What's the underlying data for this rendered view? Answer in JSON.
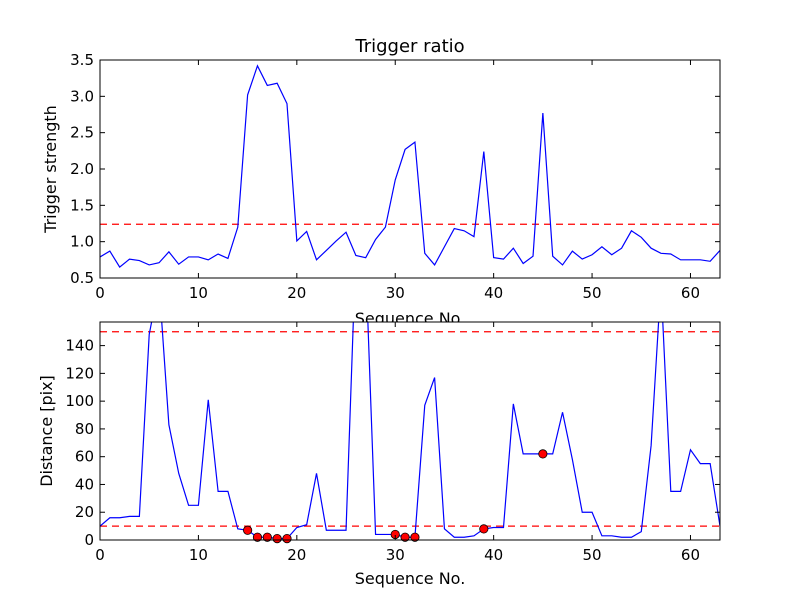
{
  "chart_data": [
    {
      "type": "line",
      "title": "Trigger ratio",
      "xlabel": "Sequence No.",
      "ylabel": "Trigger strength",
      "xlim": [
        0,
        63
      ],
      "ylim": [
        0.5,
        3.5
      ],
      "xticks": [
        0,
        10,
        20,
        30,
        40,
        50,
        60
      ],
      "xtick_labels": [
        "0",
        "10",
        "20",
        "30",
        "40",
        "50",
        "60"
      ],
      "yticks": [
        0.5,
        1.0,
        1.5,
        2.0,
        2.5,
        3.0,
        3.5
      ],
      "ytick_labels": [
        "0.5",
        "1.0",
        "1.5",
        "2.0",
        "2.5",
        "3.0",
        "3.5"
      ],
      "line_color": "#0000ff",
      "threshold_color": "#ff0000",
      "thresholds": [
        1.24
      ],
      "grid": false,
      "series": [
        {
          "x": [
            0,
            1,
            2,
            3,
            4,
            5,
            6,
            7,
            8,
            9,
            10,
            11,
            12,
            13,
            14,
            15,
            16,
            17,
            18,
            19,
            20,
            21,
            22,
            23,
            24,
            25,
            26,
            27,
            28,
            29,
            30,
            31,
            32,
            33,
            34,
            35,
            36,
            37,
            38,
            39,
            40,
            41,
            42,
            43,
            44,
            45,
            46,
            47,
            48,
            49,
            50,
            51,
            52,
            53,
            54,
            55,
            56,
            57,
            58,
            59,
            60,
            61,
            62,
            63
          ],
          "values": [
            0.79,
            0.87,
            0.65,
            0.76,
            0.74,
            0.68,
            0.71,
            0.86,
            0.69,
            0.79,
            0.79,
            0.75,
            0.83,
            0.77,
            1.2,
            3.02,
            3.42,
            3.15,
            3.18,
            2.9,
            1.01,
            1.14,
            0.75,
            0.88,
            1.01,
            1.13,
            0.81,
            0.78,
            1.03,
            1.2,
            1.85,
            2.27,
            2.37,
            0.84,
            0.68,
            0.93,
            1.18,
            1.15,
            1.07,
            2.24,
            0.78,
            0.76,
            0.91,
            0.7,
            0.8,
            2.77,
            0.8,
            0.68,
            0.87,
            0.76,
            0.82,
            0.93,
            0.82,
            0.91,
            1.15,
            1.06,
            0.91,
            0.84,
            0.83,
            0.75,
            0.75,
            0.75,
            0.73,
            0.88
          ]
        }
      ]
    },
    {
      "type": "line",
      "title": "",
      "xlabel": "Sequence No.",
      "ylabel": "Distance [pix]",
      "xlim": [
        0,
        63
      ],
      "ylim": [
        0,
        157
      ],
      "xticks": [
        0,
        10,
        20,
        30,
        40,
        50,
        60
      ],
      "xtick_labels": [
        "0",
        "10",
        "20",
        "30",
        "40",
        "50",
        "60"
      ],
      "yticks": [
        0,
        20,
        40,
        60,
        80,
        100,
        120,
        140
      ],
      "ytick_labels": [
        "0",
        "20",
        "40",
        "60",
        "80",
        "100",
        "120",
        "140"
      ],
      "line_color": "#0000ff",
      "threshold_color": "#ff0000",
      "marker_color": "#ff0000",
      "thresholds": [
        150,
        10
      ],
      "grid": false,
      "series": [
        {
          "x": [
            0,
            1,
            2,
            3,
            4,
            5,
            6,
            7,
            8,
            9,
            10,
            11,
            12,
            13,
            14,
            15,
            16,
            17,
            18,
            19,
            20,
            21,
            22,
            23,
            24,
            25,
            26,
            27,
            28,
            29,
            30,
            31,
            32,
            33,
            34,
            35,
            36,
            37,
            38,
            39,
            40,
            41,
            42,
            43,
            44,
            45,
            46,
            47,
            48,
            49,
            50,
            51,
            52,
            53,
            54,
            55,
            56,
            57,
            58,
            59,
            60,
            61,
            62,
            63
          ],
          "values": [
            10,
            16,
            16,
            17,
            17,
            148,
            185,
            83,
            48,
            25,
            25,
            101,
            35,
            35,
            8,
            7,
            2,
            2,
            1,
            1,
            9,
            11,
            48,
            7,
            7,
            7,
            210,
            200,
            4,
            4,
            4,
            2,
            2,
            97,
            117,
            8,
            2,
            2,
            3,
            8,
            9,
            9,
            98,
            62,
            62,
            62,
            62,
            92,
            58,
            20,
            20,
            3,
            3,
            2,
            2,
            6,
            68,
            185,
            35,
            35,
            65,
            55,
            55,
            10
          ]
        }
      ],
      "markers": {
        "x": [
          15,
          16,
          17,
          18,
          19,
          30,
          31,
          32,
          39,
          45
        ],
        "y": [
          7,
          2,
          2,
          1,
          1,
          4,
          2,
          2,
          8,
          62
        ]
      }
    }
  ]
}
